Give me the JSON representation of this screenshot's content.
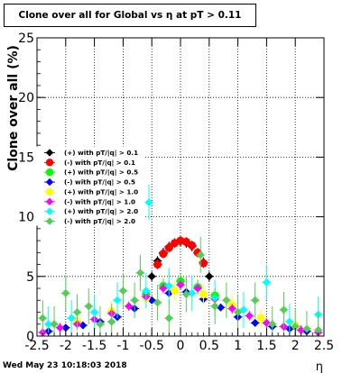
{
  "title": "Clone  over all for Global vs   η at pT > 0.11",
  "footer_timestamp": "Wed May 23 10:18:03 2018",
  "chart_data": {
    "type": "scatter",
    "title": "Clone  over all for Global vs   η at pT > 0.11",
    "xlabel": "η",
    "ylabel": "Clone  over all (%)",
    "xlim": [
      -2.5,
      2.5
    ],
    "ylim": [
      0,
      25
    ],
    "x_ticks": [
      "-2.5",
      "-2",
      "-1.5",
      "-1",
      "-0.5",
      "0",
      "0.5",
      "1",
      "1.5",
      "2",
      "2.5"
    ],
    "y_ticks": [
      "0",
      "5",
      "10",
      "15",
      "20",
      "25"
    ],
    "grid": true,
    "legend_position": "middle-left",
    "series": [
      {
        "name": "(+) with pT/|q| > 0.1",
        "color": "#000000",
        "marker": "diamond",
        "x": [
          -0.5,
          -0.4,
          -0.3,
          -0.2,
          -0.1,
          0.0,
          0.1,
          0.2,
          0.3,
          0.4,
          0.5
        ],
        "y": [
          5.0,
          6.3,
          7.0,
          7.5,
          7.8,
          7.9,
          7.8,
          7.5,
          7.0,
          6.2,
          5.0
        ],
        "err": [
          0.4,
          0.4,
          0.4,
          0.4,
          0.4,
          0.4,
          0.4,
          0.4,
          0.4,
          0.4,
          0.4
        ]
      },
      {
        "name": "(-) with pT/|q| > 0.1",
        "color": "#ff0000",
        "marker": "circle",
        "x": [
          -0.4,
          -0.3,
          -0.2,
          -0.1,
          0.0,
          0.1,
          0.2,
          0.3,
          0.4
        ],
        "y": [
          6.0,
          6.9,
          7.4,
          7.8,
          8.0,
          7.9,
          7.6,
          7.0,
          6.1
        ],
        "err": [
          0.4,
          0.4,
          0.4,
          0.4,
          0.4,
          0.4,
          0.4,
          0.4,
          0.4
        ]
      },
      {
        "name": "(+) with pT/|q| > 0.5",
        "color": "#00ff00",
        "marker": "circle",
        "x": [
          -0.6,
          -0.3,
          0.0,
          0.3,
          0.6
        ],
        "y": [
          3.5,
          4.2,
          4.6,
          4.1,
          3.4
        ],
        "err": [
          0.6,
          0.6,
          0.6,
          0.6,
          0.6
        ]
      },
      {
        "name": "(-) with pT/|q| > 0.5",
        "color": "#0000ff",
        "marker": "diamond",
        "x": [
          -2.3,
          -2.0,
          -1.7,
          -1.4,
          -1.1,
          -0.8,
          -0.5,
          -0.2,
          0.1,
          0.4,
          0.7,
          1.0,
          1.3,
          1.6,
          1.9,
          2.2
        ],
        "y": [
          0.4,
          0.7,
          0.9,
          1.2,
          1.6,
          2.3,
          3.0,
          3.6,
          3.7,
          3.1,
          2.4,
          1.6,
          1.1,
          0.8,
          0.6,
          0.4
        ],
        "err": [
          0.3,
          0.3,
          0.3,
          0.3,
          0.3,
          0.3,
          0.3,
          0.3,
          0.3,
          0.3,
          0.3,
          0.3,
          0.3,
          0.3,
          0.3,
          0.3
        ]
      },
      {
        "name": "(+) with pT/|q| > 1.0",
        "color": "#ffff00",
        "marker": "circle",
        "x": [
          -1.8,
          -1.2,
          -0.6,
          -0.1,
          0.4,
          0.9,
          1.4,
          2.0
        ],
        "y": [
          1.2,
          2.1,
          3.2,
          3.8,
          3.5,
          2.6,
          1.5,
          0.9
        ],
        "err": [
          0.8,
          0.8,
          0.8,
          0.8,
          0.8,
          0.8,
          0.8,
          0.8
        ]
      },
      {
        "name": "(-) with pT/|q| > 1.0",
        "color": "#ff00ff",
        "marker": "diamond",
        "x": [
          -2.4,
          -2.1,
          -1.8,
          -1.5,
          -1.2,
          -0.9,
          -0.6,
          -0.3,
          0.0,
          0.3,
          0.6,
          0.9,
          1.2,
          1.5,
          1.8,
          2.1,
          2.4
        ],
        "y": [
          0.3,
          0.7,
          1.0,
          1.4,
          1.9,
          2.5,
          3.3,
          4.0,
          4.3,
          4.0,
          3.1,
          2.3,
          1.7,
          1.1,
          0.8,
          0.5,
          0.3
        ],
        "err": [
          0.4,
          0.4,
          0.4,
          0.4,
          0.4,
          0.4,
          0.4,
          0.4,
          0.4,
          0.4,
          0.4,
          0.4,
          0.4,
          0.4,
          0.4,
          0.4,
          0.4
        ]
      },
      {
        "name": "(+) with pT/|q| > 2.0",
        "color": "#00ffff",
        "marker": "diamond",
        "x": [
          -2.3,
          -1.9,
          -1.5,
          -1.1,
          -0.6,
          -0.55,
          -0.2,
          0.2,
          0.6,
          1.1,
          1.5,
          1.9,
          2.4
        ],
        "y": [
          1.0,
          1.5,
          2.0,
          3.0,
          3.8,
          11.2,
          4.2,
          3.6,
          3.2,
          2.2,
          4.5,
          1.2,
          1.8
        ],
        "err": [
          1.5,
          1.5,
          1.5,
          1.5,
          1.5,
          1.5,
          1.5,
          1.5,
          1.5,
          1.5,
          1.5,
          1.5,
          1.5
        ]
      },
      {
        "name": "(-) with pT/|q| > 2.0",
        "color": "#55cc55",
        "marker": "diamond",
        "x": [
          -2.4,
          -2.2,
          -2.0,
          -1.8,
          -1.6,
          -1.4,
          -1.2,
          -1.0,
          -0.8,
          -0.7,
          -0.4,
          -0.2,
          0.1,
          0.35,
          0.6,
          0.8,
          1.0,
          1.3,
          1.6,
          1.8,
          2.0,
          2.2,
          2.4
        ],
        "y": [
          1.5,
          1.0,
          3.6,
          2.0,
          2.5,
          1.0,
          1.2,
          3.8,
          3.0,
          5.3,
          2.8,
          1.5,
          3.5,
          6.8,
          2.5,
          3.0,
          2.0,
          3.0,
          1.0,
          2.2,
          0.8,
          0.6,
          0.5
        ],
        "err": [
          1.5,
          1.5,
          1.5,
          1.5,
          1.5,
          1.5,
          1.5,
          1.5,
          1.5,
          1.5,
          1.5,
          1.5,
          1.5,
          1.5,
          1.5,
          1.5,
          1.5,
          1.5,
          1.5,
          1.5,
          1.5,
          1.5,
          1.5
        ]
      }
    ]
  }
}
